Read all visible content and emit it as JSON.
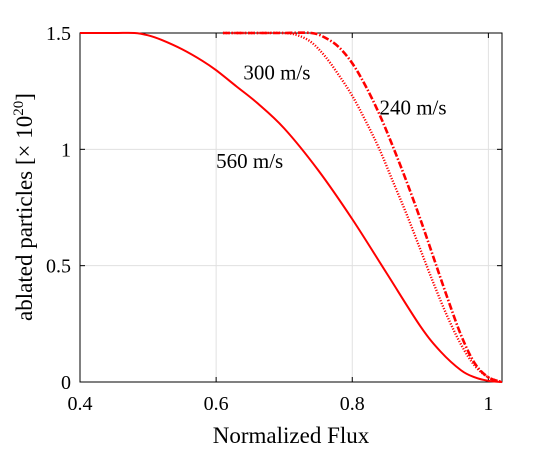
{
  "chart_data": {
    "type": "line",
    "title": "",
    "xlabel": "Normalized Flux",
    "ylabel": "ablated particles [× 10",
    "ylabel_exponent": "20",
    "ylabel_close": "]",
    "xlim": [
      0.4,
      1.02
    ],
    "ylim": [
      0,
      1.5
    ],
    "grid": true,
    "x_ticks": [
      0.4,
      0.6,
      0.8,
      1.0
    ],
    "x_tick_labels": [
      "0.4",
      "0.6",
      "0.8",
      "1"
    ],
    "y_ticks": [
      0,
      0.5,
      1.0,
      1.5
    ],
    "y_tick_labels": [
      "0",
      "0.5",
      "1",
      "1.5"
    ],
    "line_color": "#ff0000",
    "series": [
      {
        "name": "560 m/s",
        "style": "solid",
        "x": [
          0.4,
          0.45,
          0.48,
          0.5,
          0.52,
          0.55,
          0.58,
          0.6,
          0.63,
          0.66,
          0.7,
          0.75,
          0.8,
          0.85,
          0.9,
          0.93,
          0.96,
          0.98,
          1.0,
          1.02
        ],
        "y": [
          1.5,
          1.5,
          1.5,
          1.49,
          1.47,
          1.43,
          1.38,
          1.34,
          1.27,
          1.2,
          1.09,
          0.91,
          0.7,
          0.47,
          0.24,
          0.13,
          0.05,
          0.02,
          0.005,
          0.0
        ]
      },
      {
        "name": "300 m/s",
        "style": "dotted",
        "x": [
          0.61,
          0.66,
          0.7,
          0.72,
          0.74,
          0.76,
          0.78,
          0.8,
          0.82,
          0.84,
          0.86,
          0.88,
          0.9,
          0.92,
          0.94,
          0.96,
          0.98,
          1.0,
          1.02
        ],
        "y": [
          1.5,
          1.5,
          1.5,
          1.49,
          1.46,
          1.4,
          1.32,
          1.23,
          1.12,
          1.0,
          0.86,
          0.72,
          0.57,
          0.42,
          0.28,
          0.16,
          0.07,
          0.02,
          0.0
        ]
      },
      {
        "name": "240 m/s",
        "style": "dashdot",
        "x": [
          0.61,
          0.66,
          0.7,
          0.74,
          0.76,
          0.78,
          0.8,
          0.82,
          0.84,
          0.86,
          0.88,
          0.9,
          0.92,
          0.94,
          0.96,
          0.98,
          1.0,
          1.02
        ],
        "y": [
          1.5,
          1.5,
          1.5,
          1.5,
          1.48,
          1.44,
          1.37,
          1.27,
          1.15,
          1.01,
          0.86,
          0.7,
          0.53,
          0.36,
          0.2,
          0.08,
          0.02,
          0.0
        ]
      }
    ],
    "annotations": [
      {
        "text": "300 m/s",
        "x": 0.64,
        "y": 1.33
      },
      {
        "text": "240 m/s",
        "x": 0.84,
        "y": 1.18
      },
      {
        "text": "560 m/s",
        "x": 0.6,
        "y": 0.95
      }
    ]
  }
}
